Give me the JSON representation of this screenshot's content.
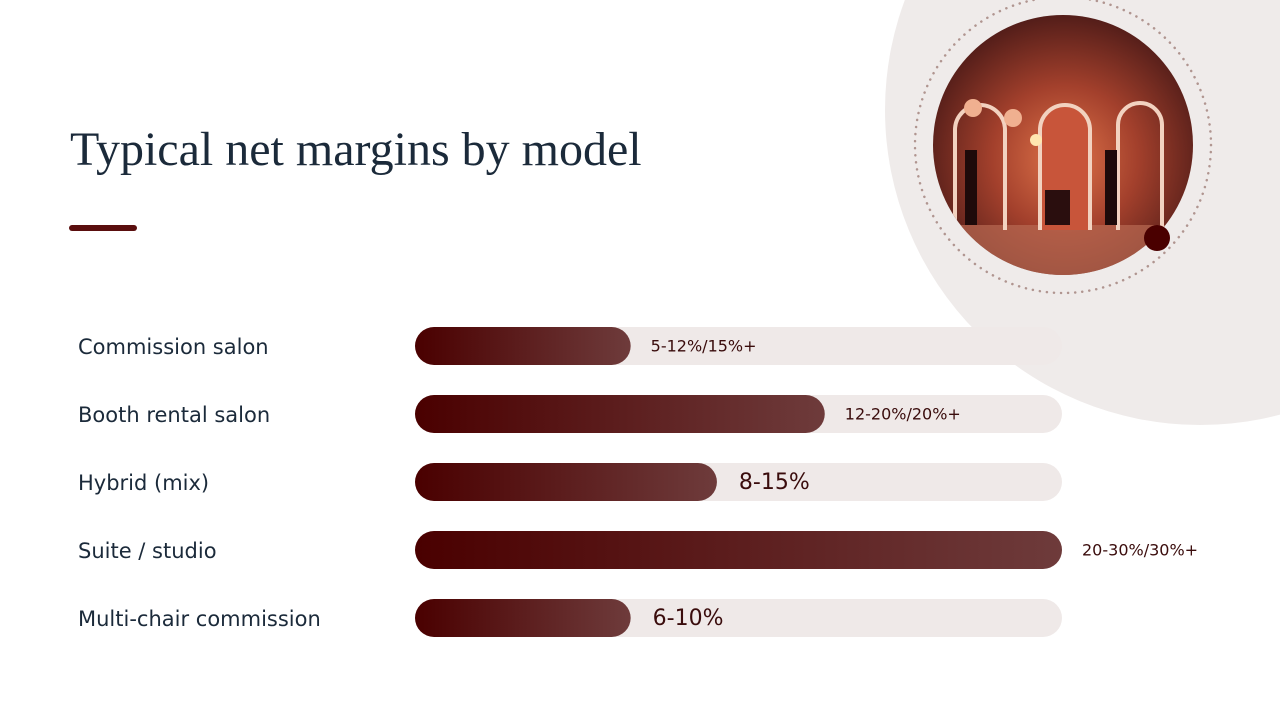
{
  "chart_data": {
    "type": "bar",
    "orientation": "horizontal",
    "title": "Typical net margins by model",
    "categories": [
      "Commission salon",
      "Booth rental salon",
      "Hybrid (mix)",
      "Suite / studio",
      "Multi-chair commission"
    ],
    "values": [
      10,
      19,
      14,
      30,
      10
    ],
    "value_labels": [
      "5-12%/15%+",
      "12-20%/20%+",
      "8-15%",
      "20-30%/30%+",
      "6-10%"
    ],
    "xlim": [
      0,
      30
    ],
    "color": "#4a0000"
  }
}
